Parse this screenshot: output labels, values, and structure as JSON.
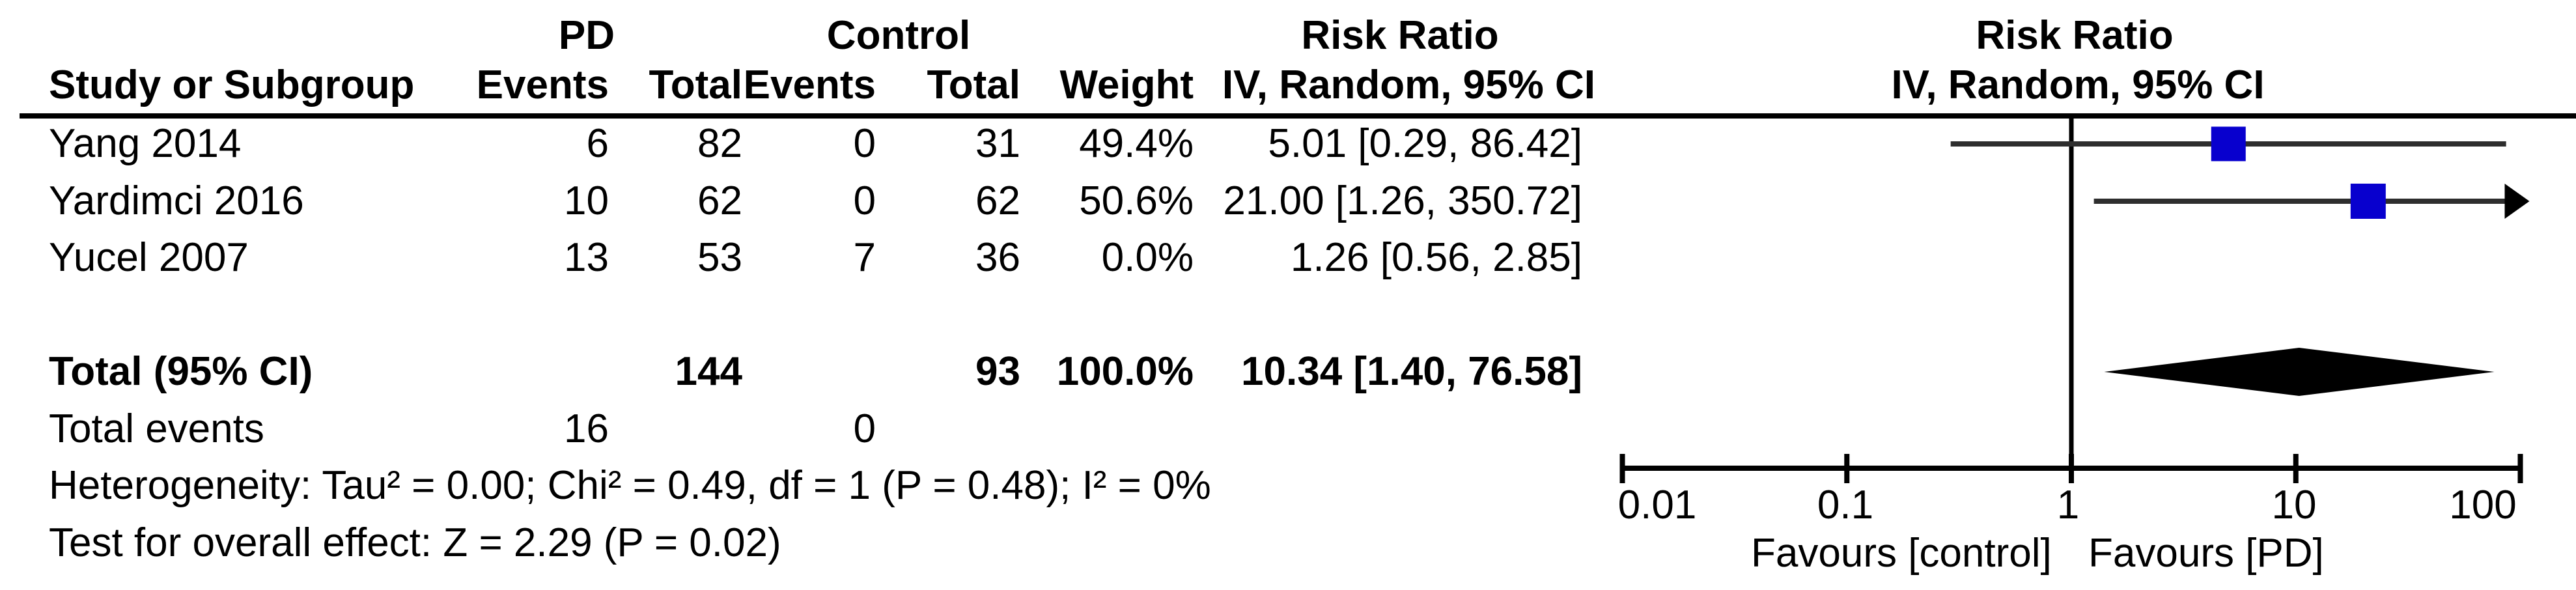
{
  "header": {
    "group_pd": "PD",
    "group_control": "Control",
    "risk_ratio_col": "Risk Ratio",
    "risk_ratio_plot": "Risk Ratio",
    "method_col": "IV, Random, 95% CI",
    "method_plot": "IV, Random, 95% CI",
    "col_study": "Study or Subgroup",
    "col_events_pd": "Events",
    "col_total_pd": "Total",
    "col_events_control": "Events",
    "col_total_control": "Total",
    "col_weight": "Weight"
  },
  "studies": [
    {
      "name": "Yang 2014",
      "pd_events": "6",
      "pd_total": "82",
      "ctrl_events": "0",
      "ctrl_total": "31",
      "weight": "49.4%",
      "ci_text": "5.01 [0.29, 86.42]"
    },
    {
      "name": "Yardimci 2016",
      "pd_events": "10",
      "pd_total": "62",
      "ctrl_events": "0",
      "ctrl_total": "62",
      "weight": "50.6%",
      "ci_text": "21.00 [1.26, 350.72]"
    },
    {
      "name": "Yucel 2007",
      "pd_events": "13",
      "pd_total": "53",
      "ctrl_events": "7",
      "ctrl_total": "36",
      "weight": "0.0%",
      "ci_text": "1.26 [0.56, 2.85]"
    }
  ],
  "total_row": {
    "label": "Total (95% CI)",
    "pd_total": "144",
    "ctrl_total": "93",
    "weight": "100.0%",
    "ci_text": "10.34 [1.40, 76.58]"
  },
  "total_events_row": {
    "label": "Total events",
    "pd_events": "16",
    "ctrl_events": "0"
  },
  "footer": {
    "heterogeneity": "Heterogeneity: Tau² = 0.00; Chi² = 0.49, df = 1 (P = 0.48); I² = 0%",
    "overall_effect": "Test for overall effect: Z = 2.29 (P = 0.02)"
  },
  "axis": {
    "labels": [
      "0.01",
      "0.1",
      "1",
      "10",
      "100"
    ],
    "favours_left": "Favours [control]",
    "favours_right": "Favours [PD]"
  },
  "colors": {
    "marker_blue": "#0800CE",
    "ci_line": "#2e2e2e",
    "diamond": "#000000",
    "axis": "#000000"
  },
  "chart_data": {
    "type": "scatter",
    "subtype": "forest_plot_log_scale",
    "title": "Risk Ratio, IV, Random, 95% CI",
    "x_scale": "log10",
    "x_ticks": [
      0.01,
      0.1,
      1,
      10,
      100
    ],
    "xlim": [
      0.01,
      100
    ],
    "reference_line": 1,
    "studies": [
      {
        "name": "Yang 2014",
        "estimate": 5.01,
        "ci_low": 0.29,
        "ci_high": 86.42,
        "weight_pct": 49.4,
        "plotted": true
      },
      {
        "name": "Yardimci 2016",
        "estimate": 21.0,
        "ci_low": 1.26,
        "ci_high": 350.72,
        "weight_pct": 50.6,
        "plotted": true
      },
      {
        "name": "Yucel 2007",
        "estimate": 1.26,
        "ci_low": 0.56,
        "ci_high": 2.85,
        "weight_pct": 0.0,
        "plotted": false
      }
    ],
    "total": {
      "label": "Total (95% CI)",
      "estimate": 10.34,
      "ci_low": 1.4,
      "ci_high": 76.58
    },
    "heterogeneity": {
      "tau2": 0.0,
      "chi2": 0.49,
      "df": 1,
      "p": 0.48,
      "i2_pct": 0
    },
    "overall_effect": {
      "z": 2.29,
      "p": 0.02
    },
    "favours": {
      "left": "Favours [control]",
      "right": "Favours [PD]"
    }
  }
}
